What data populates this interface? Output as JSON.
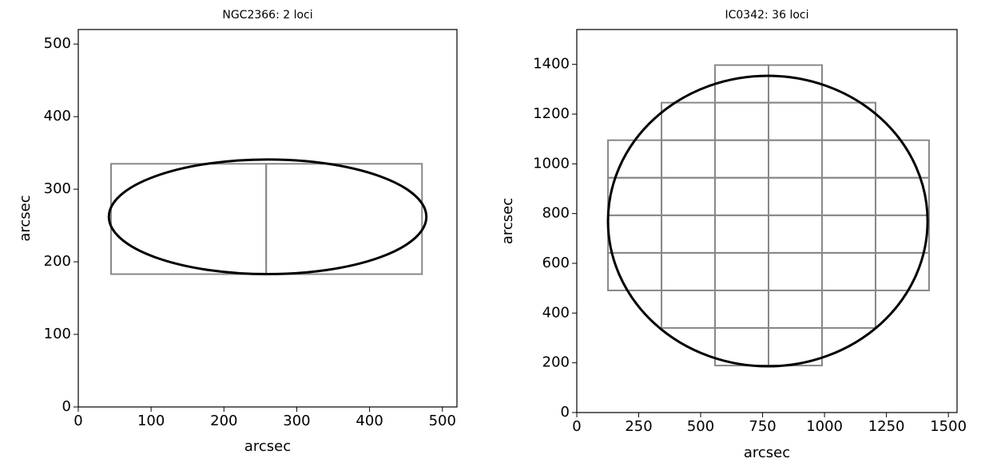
{
  "chart_data": [
    {
      "type": "footprint",
      "title": "NGC2366: 2 loci",
      "xlabel": "arcsec",
      "ylabel": "arcsec",
      "xlim": [
        0,
        520
      ],
      "ylim": [
        0,
        520
      ],
      "xticks": [
        0,
        100,
        200,
        300,
        400,
        500
      ],
      "yticks": [
        0,
        100,
        200,
        300,
        400,
        500
      ],
      "ellipse": {
        "cx": 260,
        "cy": 262,
        "rx": 218,
        "ry": 79
      },
      "ellipse_color": "#000000",
      "loci_color": "#888888",
      "loci": [
        {
          "x": 45,
          "y": 183,
          "width": 213,
          "height": 152
        },
        {
          "x": 258,
          "y": 183,
          "width": 214,
          "height": 152
        }
      ]
    },
    {
      "type": "footprint",
      "title": "IC0342: 36 loci",
      "xlabel": "arcsec",
      "ylabel": "arcsec",
      "xlim": [
        0,
        1535
      ],
      "ylim": [
        0,
        1540
      ],
      "xticks": [
        0,
        250,
        500,
        750,
        1000,
        1250,
        1500
      ],
      "yticks": [
        0,
        200,
        400,
        600,
        800,
        1000,
        1200,
        1400
      ],
      "ellipse": {
        "cx": 771,
        "cy": 770,
        "rx": 645,
        "ry": 584
      },
      "ellipse_color": "#000000",
      "loci_color": "#888888",
      "loci": [
        {
          "x": 126,
          "y": 491,
          "width": 216,
          "height": 151
        },
        {
          "x": 126,
          "y": 642,
          "width": 216,
          "height": 151
        },
        {
          "x": 126,
          "y": 793,
          "width": 216,
          "height": 151
        },
        {
          "x": 126,
          "y": 944,
          "width": 216,
          "height": 151
        },
        {
          "x": 342,
          "y": 340,
          "width": 216,
          "height": 151
        },
        {
          "x": 342,
          "y": 491,
          "width": 216,
          "height": 151
        },
        {
          "x": 342,
          "y": 642,
          "width": 216,
          "height": 151
        },
        {
          "x": 342,
          "y": 793,
          "width": 216,
          "height": 151
        },
        {
          "x": 342,
          "y": 944,
          "width": 216,
          "height": 151
        },
        {
          "x": 342,
          "y": 1095,
          "width": 216,
          "height": 151
        },
        {
          "x": 558,
          "y": 189,
          "width": 216,
          "height": 151
        },
        {
          "x": 558,
          "y": 340,
          "width": 216,
          "height": 151
        },
        {
          "x": 558,
          "y": 491,
          "width": 216,
          "height": 151
        },
        {
          "x": 558,
          "y": 642,
          "width": 216,
          "height": 151
        },
        {
          "x": 558,
          "y": 793,
          "width": 216,
          "height": 151
        },
        {
          "x": 558,
          "y": 944,
          "width": 216,
          "height": 151
        },
        {
          "x": 558,
          "y": 1095,
          "width": 216,
          "height": 151
        },
        {
          "x": 558,
          "y": 1246,
          "width": 216,
          "height": 151
        },
        {
          "x": 774,
          "y": 189,
          "width": 216,
          "height": 151
        },
        {
          "x": 774,
          "y": 340,
          "width": 216,
          "height": 151
        },
        {
          "x": 774,
          "y": 491,
          "width": 216,
          "height": 151
        },
        {
          "x": 774,
          "y": 642,
          "width": 216,
          "height": 151
        },
        {
          "x": 774,
          "y": 793,
          "width": 216,
          "height": 151
        },
        {
          "x": 774,
          "y": 944,
          "width": 216,
          "height": 151
        },
        {
          "x": 774,
          "y": 1095,
          "width": 216,
          "height": 151
        },
        {
          "x": 774,
          "y": 1246,
          "width": 216,
          "height": 151
        },
        {
          "x": 990,
          "y": 340,
          "width": 216,
          "height": 151
        },
        {
          "x": 990,
          "y": 491,
          "width": 216,
          "height": 151
        },
        {
          "x": 990,
          "y": 642,
          "width": 216,
          "height": 151
        },
        {
          "x": 990,
          "y": 793,
          "width": 216,
          "height": 151
        },
        {
          "x": 990,
          "y": 944,
          "width": 216,
          "height": 151
        },
        {
          "x": 990,
          "y": 1095,
          "width": 216,
          "height": 151
        },
        {
          "x": 1206,
          "y": 491,
          "width": 216,
          "height": 151
        },
        {
          "x": 1206,
          "y": 642,
          "width": 216,
          "height": 151
        },
        {
          "x": 1206,
          "y": 793,
          "width": 216,
          "height": 151
        },
        {
          "x": 1206,
          "y": 944,
          "width": 216,
          "height": 151
        }
      ]
    }
  ]
}
